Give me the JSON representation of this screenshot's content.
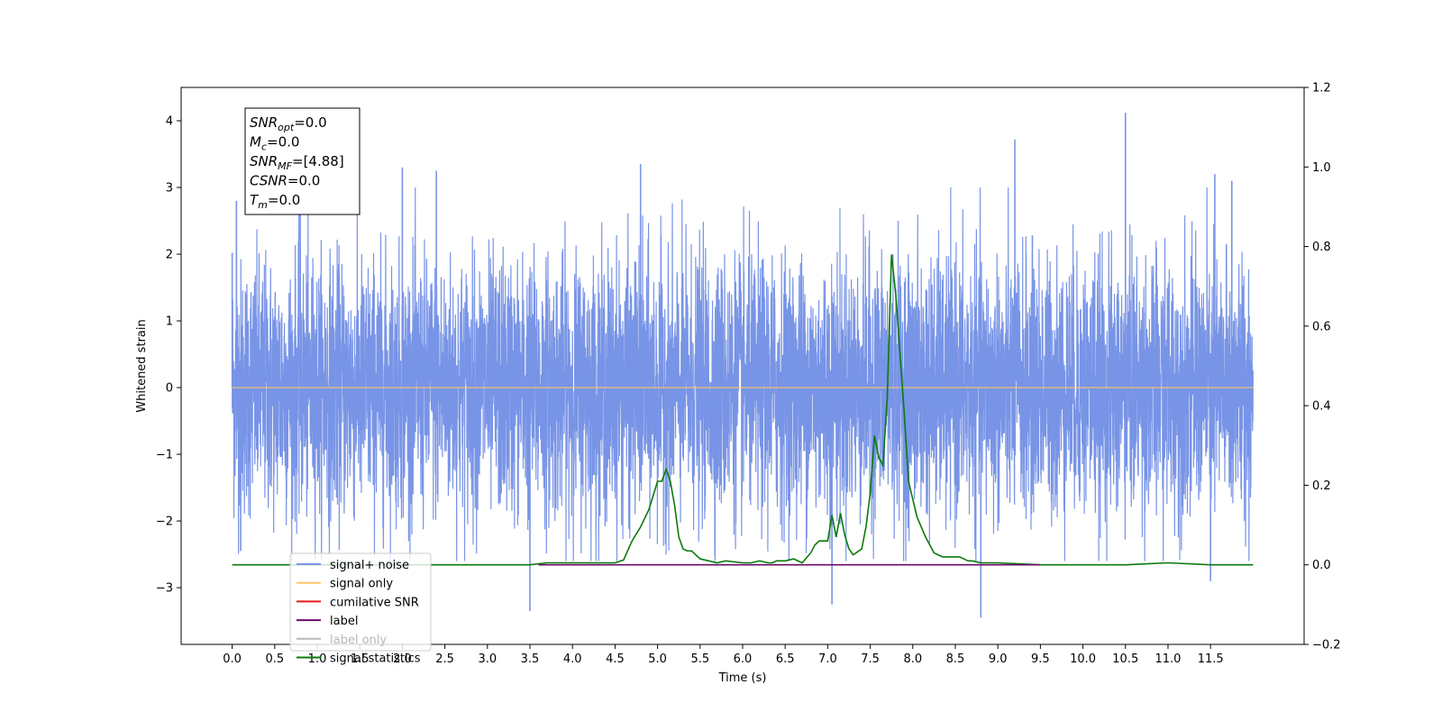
{
  "chart_data": {
    "type": "line",
    "xlabel": "Time (s)",
    "ylabel": "Whitened strain",
    "xlim": [
      -0.6,
      12.6
    ],
    "ylim_left": [
      -3.85,
      4.5
    ],
    "ylim_right": [
      -0.2,
      1.2
    ],
    "x_ticks": [
      "0.0",
      "0.5",
      "1.0",
      "1.5",
      "2.0",
      "2.5",
      "3.0",
      "3.5",
      "4.0",
      "4.5",
      "5.0",
      "5.5",
      "6.0",
      "6.5",
      "7.0",
      "7.5",
      "8.0",
      "8.5",
      "9.0",
      "9.5",
      "10.0",
      "10.5",
      "11.0",
      "11.5"
    ],
    "y_ticks_left": [
      "−3",
      "−2",
      "−1",
      "0",
      "1",
      "2",
      "3",
      "4"
    ],
    "y_ticks_right": [
      "−0.2",
      "0.0",
      "0.2",
      "0.4",
      "0.6",
      "0.8",
      "1.0",
      "1.2"
    ],
    "noise": {
      "x_range": [
        0.0,
        12.0
      ],
      "spikes": [
        {
          "x": 0.0,
          "y": 2.02
        },
        {
          "x": 0.05,
          "y": 2.8
        },
        {
          "x": 0.1,
          "y": -2.45
        },
        {
          "x": 0.8,
          "y": 2.6
        },
        {
          "x": 2.0,
          "y": 3.3
        },
        {
          "x": 2.4,
          "y": 3.25
        },
        {
          "x": 3.5,
          "y": -3.35
        },
        {
          "x": 4.8,
          "y": 3.35
        },
        {
          "x": 7.05,
          "y": -3.25
        },
        {
          "x": 8.8,
          "y": -3.45
        },
        {
          "x": 9.2,
          "y": 3.72
        },
        {
          "x": 10.5,
          "y": 4.12
        },
        {
          "x": 11.55,
          "y": 3.2
        },
        {
          "x": 11.75,
          "y": 3.1
        },
        {
          "x": 11.5,
          "y": -2.9
        }
      ]
    },
    "series": [
      {
        "name": "signal+ noise",
        "color": "#7894e6",
        "axis": "left"
      },
      {
        "name": "signal only",
        "color": "#ffc56a",
        "axis": "left",
        "x": [
          0.0,
          12.0
        ],
        "y": [
          0.0,
          0.0
        ]
      },
      {
        "name": "cumilative SNR",
        "color": "#e31a1c",
        "axis": "right"
      },
      {
        "name": "label",
        "color": "#6a0d6a",
        "axis": "right",
        "x": [
          3.6,
          9.5
        ],
        "y": [
          0.0,
          0.0
        ]
      },
      {
        "name": "label only",
        "color": "#b8b8b8",
        "axis": "right"
      },
      {
        "name": "signal statistics",
        "color": "#0b7a0b",
        "axis": "right",
        "x": [
          0.0,
          3.5,
          3.7,
          4.0,
          4.3,
          4.5,
          4.6,
          4.7,
          4.8,
          4.9,
          5.0,
          5.05,
          5.1,
          5.15,
          5.2,
          5.25,
          5.3,
          5.35,
          5.4,
          5.5,
          5.6,
          5.7,
          5.8,
          6.0,
          6.1,
          6.2,
          6.3,
          6.35,
          6.4,
          6.5,
          6.6,
          6.7,
          6.8,
          6.85,
          6.9,
          7.0,
          7.05,
          7.1,
          7.15,
          7.2,
          7.25,
          7.3,
          7.4,
          7.45,
          7.5,
          7.55,
          7.6,
          7.65,
          7.7,
          7.75,
          7.8,
          7.9,
          7.95,
          8.05,
          8.15,
          8.25,
          8.35,
          8.45,
          8.55,
          8.65,
          8.7,
          8.8,
          9.0,
          9.5,
          10.0,
          10.5,
          11.0,
          11.5,
          12.0
        ],
        "y": [
          0.0,
          0.0,
          0.005,
          0.005,
          0.005,
          0.005,
          0.012,
          0.06,
          0.095,
          0.14,
          0.21,
          0.21,
          0.24,
          0.21,
          0.15,
          0.07,
          0.04,
          0.035,
          0.035,
          0.015,
          0.01,
          0.005,
          0.01,
          0.005,
          0.005,
          0.01,
          0.005,
          0.005,
          0.01,
          0.01,
          0.015,
          0.005,
          0.03,
          0.05,
          0.06,
          0.06,
          0.125,
          0.07,
          0.13,
          0.075,
          0.04,
          0.025,
          0.04,
          0.095,
          0.18,
          0.325,
          0.27,
          0.25,
          0.42,
          0.78,
          0.68,
          0.38,
          0.21,
          0.12,
          0.07,
          0.03,
          0.02,
          0.02,
          0.02,
          0.01,
          0.01,
          0.005,
          0.005,
          0.0,
          0.0,
          0.0,
          0.005,
          0.0,
          0.0
        ]
      }
    ],
    "legend": "bottom-left",
    "grid": false
  },
  "annotation": {
    "lines": [
      {
        "base": "SNR",
        "sub": "opt",
        "value": "=0.0"
      },
      {
        "base": "M",
        "sub": "c",
        "value": "=0.0"
      },
      {
        "base": "SNR",
        "sub": "MF",
        "value": "=[4.88]"
      },
      {
        "base": "CSNR",
        "sub": "",
        "value": "=0.0"
      },
      {
        "base": "T",
        "sub": "m",
        "value": "=0.0"
      }
    ]
  }
}
